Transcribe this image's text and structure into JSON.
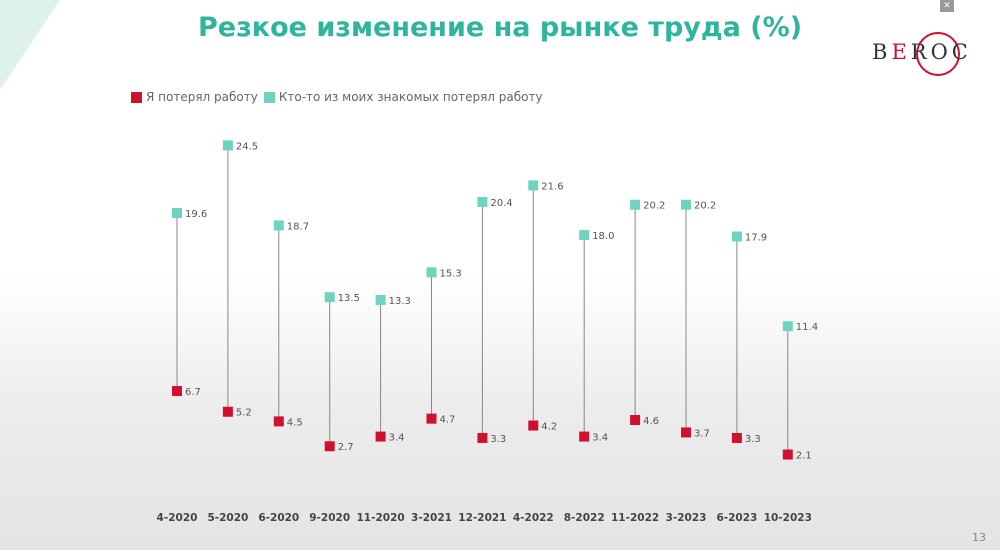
{
  "title": "Резкое изменение на рынке труда (%)",
  "logo": {
    "text": "BEROC"
  },
  "page_number": "13",
  "fullscreen_icon": "fullscreen-exit-icon",
  "colors": {
    "lost_self": "#d0102f",
    "lost_acquaintance": "#6fd3c0",
    "title": "#2fb59c"
  },
  "chart_data": {
    "type": "dumbbell",
    "title": "Резкое изменение на рынке труда (%)",
    "legend_position": "top-left",
    "grid": false,
    "ylim": [
      0,
      25
    ],
    "categories": [
      "4-2020",
      "5-2020",
      "6-2020",
      "9-2020",
      "11-2020",
      "3-2021",
      "12-2021",
      "4-2022",
      "8-2022",
      "11-2022",
      "3-2023",
      "6-2023",
      "10-2023"
    ],
    "series": [
      {
        "name": "Я потерял работу",
        "values": [
          6.7,
          5.2,
          4.5,
          2.7,
          3.4,
          4.7,
          3.3,
          4.2,
          3.4,
          4.6,
          3.7,
          3.3,
          2.1
        ]
      },
      {
        "name": "Кто-то из моих знакомых потерял работу",
        "values": [
          19.6,
          24.5,
          18.7,
          13.5,
          13.3,
          15.3,
          20.4,
          21.6,
          18.0,
          20.2,
          20.2,
          17.9,
          11.4
        ]
      }
    ]
  }
}
